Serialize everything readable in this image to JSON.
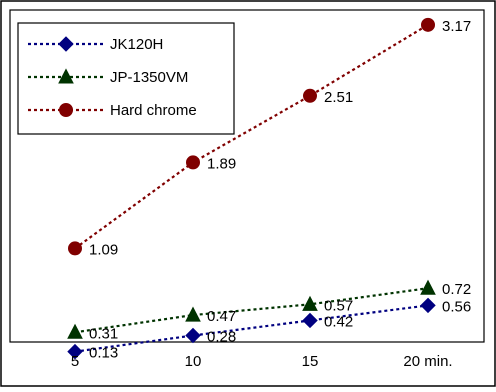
{
  "chart_data": {
    "type": "line",
    "categories": [
      "5",
      "10",
      "15",
      "20 min."
    ],
    "series": [
      {
        "name": "JK120H",
        "values": [
          0.13,
          0.28,
          0.42,
          0.56
        ],
        "labels": [
          "0.13",
          "0.28",
          "0.42",
          "0.56"
        ],
        "color": "#000080",
        "marker": "diamond"
      },
      {
        "name": "JP-1350VM",
        "values": [
          0.31,
          0.47,
          0.57,
          0.72
        ],
        "labels": [
          "0.31",
          "0.47",
          "0.57",
          "0.72"
        ],
        "color": "#003300",
        "marker": "triangle"
      },
      {
        "name": "Hard chrome",
        "values": [
          1.09,
          1.89,
          2.51,
          3.17
        ],
        "labels": [
          "1.09",
          "1.89",
          "2.51",
          "3.17"
        ],
        "color": "#800000",
        "marker": "circle"
      }
    ],
    "line_style": "dotted",
    "legend_position": "top-left",
    "grid": false,
    "ylim": [
      0,
      3.5
    ],
    "y_axis_labels_shown": false
  }
}
